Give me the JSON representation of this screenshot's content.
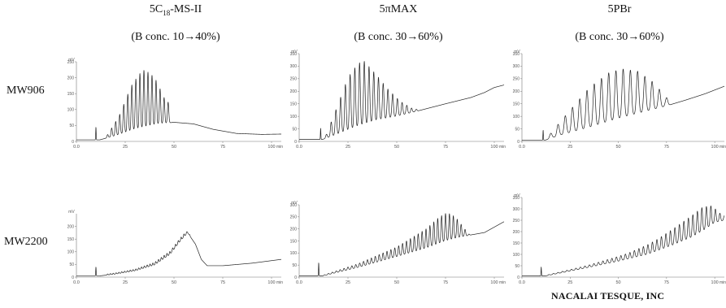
{
  "columns": [
    {
      "title_pre": "5C",
      "title_sub": "18",
      "title_post": "-MS-II",
      "condition": "(B conc. 10→40%)"
    },
    {
      "title": "5πMAX",
      "condition": "(B conc. 30→60%)"
    },
    {
      "title": "5PBr",
      "condition": "(B conc. 30→60%)"
    }
  ],
  "rows": [
    "MW906",
    "MW2200"
  ],
  "brand": "NACALAI TESQUE, INC",
  "axis": {
    "y_unit": "mV",
    "x_unit": "min"
  },
  "chart_data": [
    {
      "type": "line",
      "row": "MW906",
      "column": "5C18-MS-II",
      "xlim": [
        0,
        105
      ],
      "ylim": [
        0,
        250
      ],
      "x_ticks": [
        0,
        25,
        50,
        75,
        100
      ],
      "x_tick_labels": [
        "0.0",
        "25",
        "50",
        "75",
        "100"
      ],
      "y_ticks": [
        0,
        50,
        100,
        150,
        200,
        250
      ],
      "y_tick_labels": [
        "0",
        "50",
        "100",
        "150",
        "200",
        "250"
      ],
      "baseline": {
        "points": [
          [
            0,
            5
          ],
          [
            12,
            5
          ],
          [
            20,
            18
          ],
          [
            30,
            38
          ],
          [
            42,
            55
          ],
          [
            50,
            60
          ],
          [
            60,
            55
          ],
          [
            70,
            38
          ],
          [
            82,
            25
          ],
          [
            95,
            22
          ],
          [
            105,
            23
          ]
        ]
      },
      "peaks": {
        "start": 16,
        "end": 47,
        "count": 16,
        "heights": [
          [
            16,
            10
          ],
          [
            22,
            60
          ],
          [
            28,
            140
          ],
          [
            33,
            175
          ],
          [
            35,
            180
          ],
          [
            40,
            150
          ],
          [
            45,
            80
          ],
          [
            48,
            58
          ]
        ]
      },
      "spikes": [
        [
          10,
          40
        ]
      ]
    },
    {
      "type": "line",
      "row": "MW906",
      "column": "5πMAX",
      "xlim": [
        0,
        105
      ],
      "ylim": [
        0,
        350
      ],
      "x_ticks": [
        0,
        25,
        50,
        75,
        100
      ],
      "x_tick_labels": [
        "0.0",
        "25",
        "50",
        "75",
        "100"
      ],
      "y_ticks": [
        0,
        50,
        100,
        150,
        200,
        250,
        300,
        350
      ],
      "y_tick_labels": [
        "0",
        "50",
        "100",
        "150",
        "200",
        "250",
        "300",
        "350"
      ],
      "baseline": {
        "points": [
          [
            0,
            8
          ],
          [
            12,
            8
          ],
          [
            20,
            30
          ],
          [
            30,
            60
          ],
          [
            40,
            85
          ],
          [
            50,
            100
          ],
          [
            60,
            120
          ],
          [
            75,
            150
          ],
          [
            88,
            175
          ],
          [
            95,
            195
          ],
          [
            100,
            215
          ],
          [
            105,
            225
          ]
        ]
      },
      "peaks": {
        "start": 14,
        "end": 60,
        "count": 20,
        "heights": [
          [
            14,
            15
          ],
          [
            20,
            120
          ],
          [
            25,
            210
          ],
          [
            30,
            250
          ],
          [
            33,
            255
          ],
          [
            38,
            200
          ],
          [
            45,
            120
          ],
          [
            52,
            55
          ],
          [
            58,
            15
          ],
          [
            60,
            8
          ]
        ]
      },
      "spikes": [
        [
          11,
          45
        ]
      ]
    },
    {
      "type": "line",
      "row": "MW906",
      "column": "5PBr",
      "xlim": [
        0,
        105
      ],
      "ylim": [
        0,
        350
      ],
      "x_ticks": [
        0,
        25,
        50,
        75,
        100
      ],
      "x_tick_labels": [
        "0.0",
        "25",
        "50",
        "75",
        "100"
      ],
      "y_ticks": [
        0,
        50,
        100,
        150,
        200,
        250,
        300,
        350
      ],
      "y_tick_labels": [
        "0",
        "50",
        "100",
        "150",
        "200",
        "250",
        "300",
        "350"
      ],
      "baseline": {
        "points": [
          [
            0,
            5
          ],
          [
            12,
            5
          ],
          [
            20,
            25
          ],
          [
            35,
            55
          ],
          [
            50,
            90
          ],
          [
            60,
            110
          ],
          [
            72,
            135
          ],
          [
            85,
            165
          ],
          [
            95,
            190
          ],
          [
            105,
            220
          ]
        ]
      },
      "peaks": {
        "start": 15,
        "end": 75,
        "count": 17,
        "heights": [
          [
            15,
            20
          ],
          [
            25,
            90
          ],
          [
            35,
            160
          ],
          [
            45,
            195
          ],
          [
            52,
            195
          ],
          [
            60,
            170
          ],
          [
            68,
            110
          ],
          [
            74,
            45
          ],
          [
            76,
            20
          ]
        ]
      },
      "spikes": [
        [
          11,
          40
        ]
      ]
    },
    {
      "type": "line",
      "row": "MW2200",
      "column": "5C18-MS-II",
      "xlim": [
        0,
        105
      ],
      "ylim": [
        0,
        250
      ],
      "x_ticks": [
        0,
        25,
        50,
        75,
        100
      ],
      "x_tick_labels": [
        "0.0",
        "25",
        "50",
        "75",
        "100"
      ],
      "y_ticks": [
        0,
        50,
        100,
        150,
        200
      ],
      "y_tick_labels": [
        "0",
        "50",
        "100",
        "150",
        "200"
      ],
      "baseline": {
        "points": [
          [
            0,
            5
          ],
          [
            12,
            5
          ],
          [
            20,
            12
          ],
          [
            30,
            25
          ],
          [
            40,
            48
          ],
          [
            48,
            90
          ],
          [
            53,
            140
          ],
          [
            57,
            175
          ],
          [
            61,
            130
          ],
          [
            64,
            70
          ],
          [
            67,
            45
          ],
          [
            75,
            45
          ],
          [
            90,
            55
          ],
          [
            105,
            70
          ]
        ]
      },
      "peaks": {
        "start": 16,
        "end": 58,
        "count": 30,
        "heights": [
          [
            16,
            4
          ],
          [
            30,
            6
          ],
          [
            45,
            12
          ],
          [
            55,
            12
          ],
          [
            58,
            4
          ]
        ]
      },
      "spikes": [
        [
          10,
          35
        ]
      ]
    },
    {
      "type": "line",
      "row": "MW2200",
      "column": "5πMAX",
      "xlim": [
        0,
        105
      ],
      "ylim": [
        0,
        300
      ],
      "x_ticks": [
        0,
        25,
        50,
        75,
        100
      ],
      "x_tick_labels": [
        "0.0",
        "25",
        "50",
        "75",
        "100"
      ],
      "y_ticks": [
        0,
        50,
        100,
        150,
        200,
        250,
        300
      ],
      "y_tick_labels": [
        "0",
        "50",
        "100",
        "150",
        "200",
        "250",
        "300"
      ],
      "baseline": {
        "points": [
          [
            0,
            5
          ],
          [
            12,
            5
          ],
          [
            30,
            40
          ],
          [
            50,
            85
          ],
          [
            65,
            120
          ],
          [
            75,
            150
          ],
          [
            82,
            165
          ],
          [
            88,
            175
          ],
          [
            95,
            185
          ],
          [
            105,
            230
          ]
        ]
      },
      "peaks": {
        "start": 13,
        "end": 87,
        "count": 38,
        "heights": [
          [
            13,
            3
          ],
          [
            30,
            15
          ],
          [
            50,
            40
          ],
          [
            65,
            80
          ],
          [
            72,
            110
          ],
          [
            76,
            115
          ],
          [
            80,
            90
          ],
          [
            84,
            40
          ],
          [
            87,
            5
          ]
        ]
      },
      "spikes": [
        [
          10,
          55
        ]
      ]
    },
    {
      "type": "line",
      "row": "MW2200",
      "column": "5PBr",
      "xlim": [
        0,
        105
      ],
      "ylim": [
        0,
        350
      ],
      "x_ticks": [
        0,
        25,
        50,
        75,
        100
      ],
      "x_tick_labels": [
        "0.0",
        "25",
        "50",
        "75",
        "100"
      ],
      "y_ticks": [
        0,
        50,
        100,
        150,
        200,
        250,
        300,
        350
      ],
      "y_tick_labels": [
        "0",
        "50",
        "100",
        "150",
        "200",
        "250",
        "300",
        "350"
      ],
      "baseline": {
        "points": [
          [
            0,
            5
          ],
          [
            12,
            5
          ],
          [
            30,
            35
          ],
          [
            50,
            70
          ],
          [
            65,
            100
          ],
          [
            78,
            140
          ],
          [
            88,
            175
          ],
          [
            95,
            210
          ],
          [
            100,
            240
          ],
          [
            105,
            250
          ]
        ]
      },
      "peaks": {
        "start": 14,
        "end": 105,
        "count": 40,
        "heights": [
          [
            14,
            3
          ],
          [
            35,
            10
          ],
          [
            55,
            25
          ],
          [
            70,
            50
          ],
          [
            80,
            75
          ],
          [
            88,
            95
          ],
          [
            94,
            105
          ],
          [
            98,
            85
          ],
          [
            102,
            40
          ],
          [
            105,
            20
          ]
        ]
      },
      "spikes": [
        [
          10,
          40
        ]
      ]
    }
  ]
}
